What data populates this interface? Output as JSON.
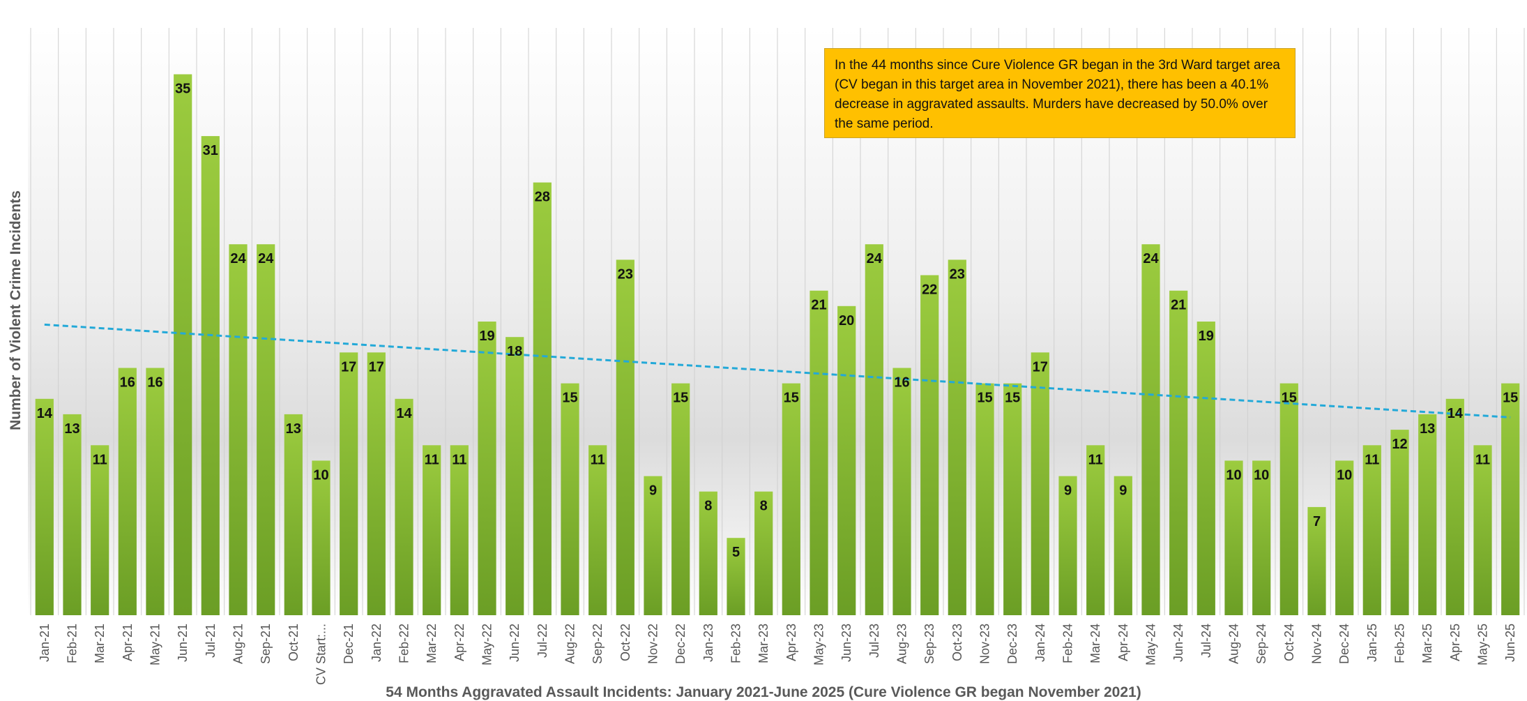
{
  "chart_data": {
    "type": "bar",
    "title": "",
    "xlabel": "54 Months Aggravated Assault Incidents:  January 2021-June 2025 (Cure Violence GR began November 2021)",
    "ylabel": "Number of Violent Crime Incidents",
    "ylim": [
      0,
      38
    ],
    "grid": "vertical",
    "legend": "none",
    "categories": [
      "Jan-21",
      "Feb-21",
      "Mar-21",
      "Apr-21",
      "May-21",
      "Jun-21",
      "Jul-21",
      "Aug-21",
      "Sep-21",
      "Oct-21",
      "CV Start:...",
      "Dec-21",
      "Jan-22",
      "Feb-22",
      "Mar-22",
      "Apr-22",
      "May-22",
      "Jun-22",
      "Jul-22",
      "Aug-22",
      "Sep-22",
      "Oct-22",
      "Nov-22",
      "Dec-22",
      "Jan-23",
      "Feb-23",
      "Mar-23",
      "Apr-23",
      "May-23",
      "Jun-23",
      "Jul-23",
      "Aug-23",
      "Sep-23",
      "Oct-23",
      "Nov-23",
      "Dec-23",
      "Jan-24",
      "Feb-24",
      "Mar-24",
      "Apr-24",
      "May-24",
      "Jun-24",
      "Jul-24",
      "Aug-24",
      "Sep-24",
      "Oct-24",
      "Nov-24",
      "Dec-24",
      "Jan-25",
      "Feb-25",
      "Mar-25",
      "Apr-25",
      "May-25",
      "Jun-25"
    ],
    "values": [
      14,
      13,
      11,
      16,
      16,
      35,
      31,
      24,
      24,
      13,
      10,
      17,
      17,
      14,
      11,
      11,
      19,
      18,
      28,
      15,
      11,
      23,
      9,
      15,
      8,
      5,
      8,
      15,
      21,
      20,
      24,
      16,
      22,
      23,
      15,
      15,
      17,
      9,
      11,
      9,
      24,
      21,
      19,
      10,
      10,
      15,
      7,
      10,
      11,
      12,
      13,
      14,
      11,
      15
    ],
    "trendline": {
      "type": "linear",
      "start": 18.8,
      "end": 12.8,
      "style": "dashed"
    },
    "annotation": "In the 44 months since Cure Violence GR began in the 3rd Ward target area (CV began in this target area in November 2021), there has been a 40.1% decrease in aggravated assaults. Murders have decreased by 50.0% over the same period.",
    "colors": {
      "bar_top": "#9ccc3f",
      "bar_bottom": "#6b9e25",
      "trendline": "#23a9d8",
      "annotation_bg": "#ffc000"
    }
  }
}
